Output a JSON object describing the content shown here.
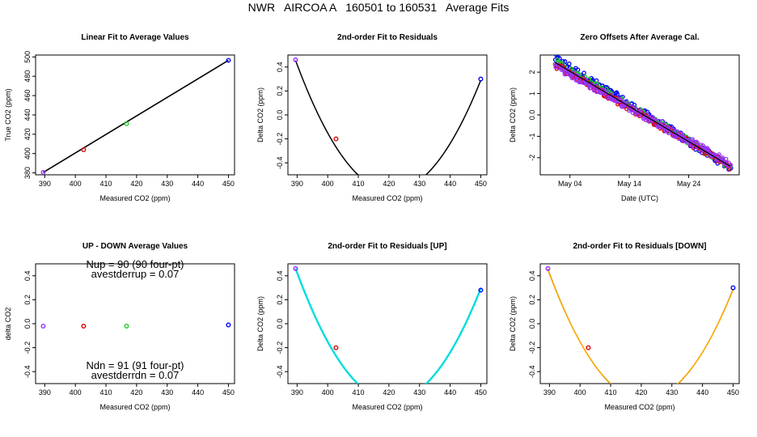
{
  "page": {
    "title": "NWR   AIRCOA A   160501 to 160531   Average Fits"
  },
  "colors": {
    "black": "#000000",
    "red": "#dd0000",
    "green": "#22cc22",
    "blue": "#0000ff",
    "purple": "#9933ff",
    "cyan": "#00dddd",
    "orange": "#ffaa00"
  },
  "chart_data": [
    {
      "id": "p1",
      "type": "scatter",
      "title": "Linear Fit to Average Values",
      "xlabel": "Measured CO2 (ppm)",
      "ylabel": "True CO2 (ppm)",
      "xlim": [
        387,
        452
      ],
      "ylim": [
        378,
        502
      ],
      "xticks": [
        390,
        400,
        410,
        420,
        430,
        440,
        450
      ],
      "yticks": [
        380,
        400,
        420,
        440,
        460,
        480,
        500
      ],
      "points": [
        {
          "x": 389.5,
          "y": 380.5,
          "color": "purple"
        },
        {
          "x": 402.7,
          "y": 404.0,
          "color": "red"
        },
        {
          "x": 416.7,
          "y": 431.0,
          "color": "green"
        },
        {
          "x": 450.0,
          "y": 496.5,
          "color": "blue"
        }
      ],
      "line": {
        "type": "linear",
        "x": [
          389.5,
          450.0
        ],
        "y": [
          380.5,
          496.5
        ],
        "color": "black"
      }
    },
    {
      "id": "p2",
      "type": "scatter",
      "title": "2nd-order Fit to Residuals",
      "xlabel": "Measured CO2 (ppm)",
      "ylabel": "Delta CO2 (ppm)",
      "xlim": [
        387,
        452
      ],
      "ylim": [
        -0.5,
        0.5
      ],
      "xticks": [
        390,
        400,
        410,
        420,
        430,
        440,
        450
      ],
      "yticks": [
        -0.4,
        -0.2,
        0.0,
        0.2,
        0.4
      ],
      "points": [
        {
          "x": 389.5,
          "y": 0.46,
          "color": "purple"
        },
        {
          "x": 402.7,
          "y": -0.2,
          "color": "red"
        },
        {
          "x": 450.0,
          "y": 0.3,
          "color": "blue"
        }
      ],
      "curves": [
        {
          "type": "quadratic",
          "vertex_x": 421.0,
          "vertex_y": -0.636,
          "a": 0.0011,
          "x": [
            389.5,
            450.0
          ],
          "color": "black",
          "width": 1.5
        }
      ]
    },
    {
      "id": "p3",
      "type": "scatter",
      "title": "Zero Offsets After Average Cal.",
      "xlabel": "Date (UTC)",
      "ylabel": "Delta CO2 (ppm)",
      "xlim": [
        -2,
        31.5
      ],
      "ylim": [
        -2.8,
        2.8
      ],
      "xticks": [
        3,
        13,
        23
      ],
      "xticklabels": [
        "May 04",
        "May 14",
        "May 24"
      ],
      "yticks": [
        -2,
        -1,
        0,
        1,
        2
      ],
      "series": [
        {
          "name": "blue",
          "color": "blue",
          "x_start": 0.5,
          "x_end": 30.0,
          "y_start": 2.65,
          "y_end": -2.45,
          "spread": 0.18
        },
        {
          "name": "green",
          "color": "green",
          "x_start": 0.5,
          "x_end": 30.0,
          "y_start": 2.5,
          "y_end": -2.4,
          "spread": 0.14
        },
        {
          "name": "red",
          "color": "red",
          "x_start": 0.5,
          "x_end": 30.0,
          "y_start": 2.35,
          "y_end": -2.4,
          "spread": 0.14
        },
        {
          "name": "purple",
          "color": "purple",
          "x_start": 0.5,
          "x_end": 30.0,
          "y_start": 2.3,
          "y_end": -2.3,
          "spread": 0.16
        }
      ],
      "trend": {
        "x": [
          0.5,
          30.0
        ],
        "y": [
          2.45,
          -2.4
        ],
        "color": "black"
      }
    },
    {
      "id": "p4",
      "type": "scatter",
      "title": "UP - DOWN Average Values",
      "xlabel": "Measured CO2 (ppm)",
      "ylabel": "delta CO2",
      "xlim": [
        387,
        452
      ],
      "ylim": [
        -0.5,
        0.5
      ],
      "xticks": [
        390,
        400,
        410,
        420,
        430,
        440,
        450
      ],
      "yticks": [
        -0.4,
        -0.2,
        0.0,
        0.2,
        0.4
      ],
      "points": [
        {
          "x": 389.5,
          "y": -0.02,
          "color": "purple"
        },
        {
          "x": 402.7,
          "y": -0.02,
          "color": "red"
        },
        {
          "x": 416.7,
          "y": -0.02,
          "color": "green"
        },
        {
          "x": 450.0,
          "y": -0.01,
          "color": "blue"
        }
      ],
      "annotations": [
        {
          "text": "Nup = 90 (90 four-pt)",
          "x": 419.5,
          "y": 0.465
        },
        {
          "text": "avestderrup =  0.07",
          "x": 419.5,
          "y": 0.385
        },
        {
          "text": "Ndn = 91 (91 four-pt)",
          "x": 419.5,
          "y": -0.38
        },
        {
          "text": "avestderrdn =  0.07",
          "x": 419.5,
          "y": -0.46
        }
      ]
    },
    {
      "id": "p5",
      "type": "scatter",
      "title": "2nd-order Fit to Residuals [UP]",
      "xlabel": "Measured CO2 (ppm)",
      "ylabel": "Delta CO2 (ppm)",
      "xlim": [
        387,
        452
      ],
      "ylim": [
        -0.5,
        0.5
      ],
      "xticks": [
        390,
        400,
        410,
        420,
        430,
        440,
        450
      ],
      "yticks": [
        -0.4,
        -0.2,
        0.0,
        0.2,
        0.4
      ],
      "points": [
        {
          "x": 389.5,
          "y": 0.46,
          "color": "purple"
        },
        {
          "x": 402.7,
          "y": -0.2,
          "color": "red"
        },
        {
          "x": 450.0,
          "y": 0.28,
          "color": "blue"
        }
      ],
      "curves": [
        {
          "type": "quadratic",
          "vertex_x": 421.0,
          "vertex_y": -0.636,
          "a": 0.0011,
          "x": [
            389.5,
            450.0
          ],
          "color": "black",
          "width": 1.2
        },
        {
          "type": "quadratic",
          "vertex_x": 421.0,
          "vertex_y": -0.64,
          "a": 0.00111,
          "x": [
            389.5,
            450.0
          ],
          "color": "cyan",
          "width": 2.4
        }
      ]
    },
    {
      "id": "p6",
      "type": "scatter",
      "title": "2nd-order Fit to Residuals [DOWN]",
      "xlabel": "Measured CO2 (ppm)",
      "ylabel": "Delta CO2 (ppm)",
      "xlim": [
        387,
        452
      ],
      "ylim": [
        -0.5,
        0.5
      ],
      "xticks": [
        390,
        400,
        410,
        420,
        430,
        440,
        450
      ],
      "yticks": [
        -0.4,
        -0.2,
        0.0,
        0.2,
        0.4
      ],
      "points": [
        {
          "x": 389.5,
          "y": 0.46,
          "color": "purple"
        },
        {
          "x": 402.7,
          "y": -0.2,
          "color": "red"
        },
        {
          "x": 450.0,
          "y": 0.3,
          "color": "blue"
        }
      ],
      "curves": [
        {
          "type": "quadratic",
          "vertex_x": 421.0,
          "vertex_y": -0.636,
          "a": 0.0011,
          "x": [
            389.5,
            450.0
          ],
          "color": "black",
          "width": 1.2
        },
        {
          "type": "quadratic",
          "vertex_x": 421.0,
          "vertex_y": -0.632,
          "a": 0.00109,
          "x": [
            389.5,
            450.0
          ],
          "color": "orange",
          "width": 1.6
        }
      ]
    }
  ]
}
